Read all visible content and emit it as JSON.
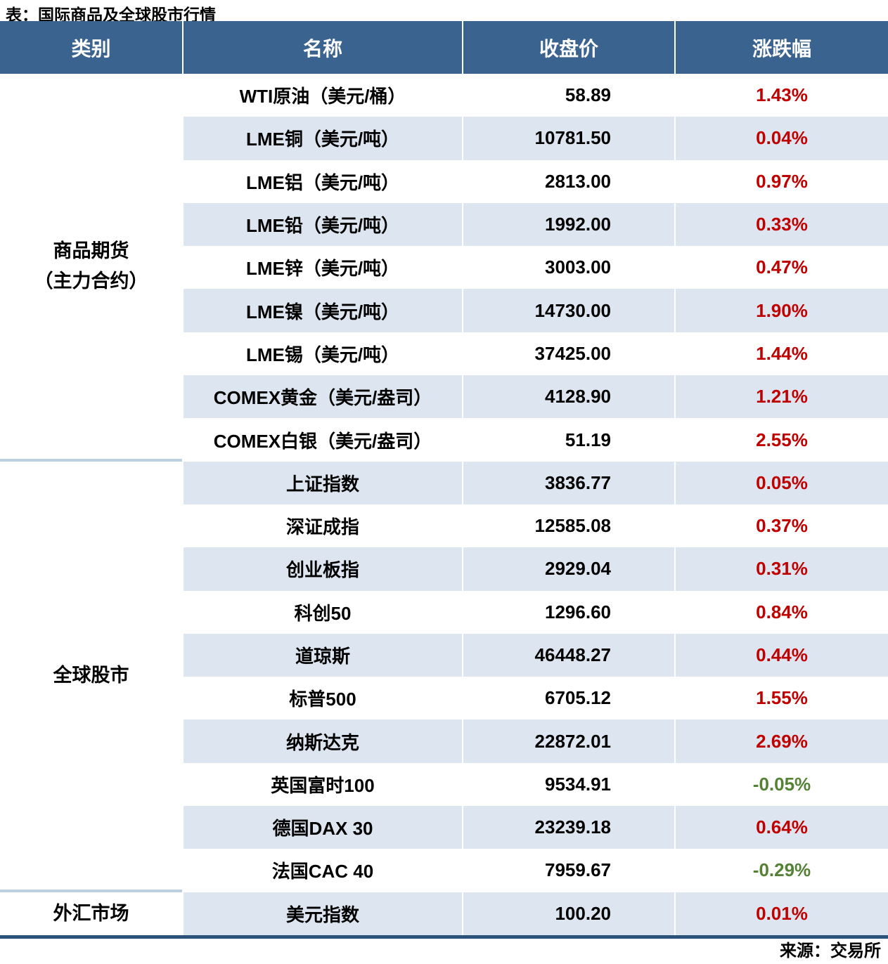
{
  "title": "表：国际商品及全球股市行情",
  "source": "来源：交易所",
  "colors": {
    "header_bg": "#3a638f",
    "stripe_bg": "#dde6f0",
    "positive_change": "#c00000",
    "negative_change": "#548235",
    "group_separator": "#bdd0e2",
    "table_bottom_border": "#2b527a"
  },
  "chart_data": {
    "type": "table",
    "title": "表：国际商品及全球股市行情",
    "columns": [
      "类别",
      "名称",
      "收盘价",
      "涨跌幅"
    ],
    "groups": [
      {
        "category": "商品期货（主力合约）",
        "category_lines": [
          "商品期货",
          "（主力合约）"
        ],
        "rows": [
          [
            "WTI原油（美元/桶）",
            "58.89",
            "1.43%"
          ],
          [
            "LME铜（美元/吨）",
            "10781.50",
            "0.04%"
          ],
          [
            "LME铝（美元/吨）",
            "2813.00",
            "0.97%"
          ],
          [
            "LME铅（美元/吨）",
            "1992.00",
            "0.33%"
          ],
          [
            "LME锌（美元/吨）",
            "3003.00",
            "0.47%"
          ],
          [
            "LME镍（美元/吨）",
            "14730.00",
            "1.90%"
          ],
          [
            "LME锡（美元/吨）",
            "37425.00",
            "1.44%"
          ],
          [
            "COMEX黄金（美元/盎司）",
            "4128.90",
            "1.21%"
          ],
          [
            "COMEX白银（美元/盎司）",
            "51.19",
            "2.55%"
          ]
        ]
      },
      {
        "category": "全球股市",
        "category_lines": [
          "全球股市"
        ],
        "rows": [
          [
            "上证指数",
            "3836.77",
            "0.05%"
          ],
          [
            "深证成指",
            "12585.08",
            "0.37%"
          ],
          [
            "创业板指",
            "2929.04",
            "0.31%"
          ],
          [
            "科创50",
            "1296.60",
            "0.84%"
          ],
          [
            "道琼斯",
            "46448.27",
            "0.44%"
          ],
          [
            "标普500",
            "6705.12",
            "1.55%"
          ],
          [
            "纳斯达克",
            "22872.01",
            "2.69%"
          ],
          [
            "英国富时100",
            "9534.91",
            "-0.05%"
          ],
          [
            "德国DAX 30",
            "23239.18",
            "0.64%"
          ],
          [
            "法国CAC 40",
            "7959.67",
            "-0.29%"
          ]
        ]
      },
      {
        "category": "外汇市场",
        "category_lines": [
          "外汇市场"
        ],
        "rows": [
          [
            "美元指数",
            "100.20",
            "0.01%"
          ]
        ]
      }
    ],
    "source": "来源：交易所"
  }
}
